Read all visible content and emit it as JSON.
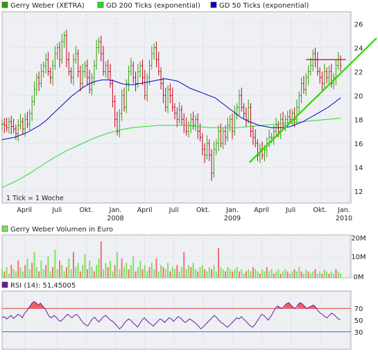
{
  "colors": {
    "panel_bg": "#eef0f4",
    "grid": "#c8ccd4",
    "up": "#2da000",
    "down": "#c8001e",
    "gd200": "#22e022",
    "gd50": "#0000c0",
    "trend": "#33dd00",
    "resistance": "#cc0000",
    "rsi_line": "#6a1a9a",
    "rsi_fill": "#f06060",
    "rsi_band_top": "#e02020",
    "rsi_band_bottom": "#4040c0",
    "vol_up": "#80e060",
    "vol_down": "#f07070"
  },
  "legend": {
    "series1": "Gerry Weber (XETRA)",
    "series2": "GD 200 Ticks (exponential)",
    "series3": "GD 50 Ticks (exponential)",
    "volume_title": "Gerry Weber Volumen in Euro",
    "rsi_title": "RSI (14): 51,45005",
    "tick_note": "1 Tick = 1 Woche"
  },
  "chart_data": [
    {
      "type": "ohlc",
      "name": "Gerry Weber (XETRA)",
      "ylim": [
        11,
        27
      ],
      "yticks": [
        12,
        14,
        16,
        18,
        20,
        22,
        24,
        26
      ],
      "x_labels": [
        {
          "label": "April",
          "pos": 0.065
        },
        {
          "label": "Juli",
          "pos": 0.16
        },
        {
          "label": "Okt.",
          "pos": 0.245
        },
        {
          "label": "Jan.",
          "pos": 0.33,
          "year": "2008"
        },
        {
          "label": "April",
          "pos": 0.415
        },
        {
          "label": "Juli",
          "pos": 0.5
        },
        {
          "label": "Okt.",
          "pos": 0.585
        },
        {
          "label": "Jan.",
          "pos": 0.67,
          "year": "2009"
        },
        {
          "label": "April",
          "pos": 0.755
        },
        {
          "label": "Juli",
          "pos": 0.84
        },
        {
          "label": "Okt.",
          "pos": 0.925
        },
        {
          "label": "Jan.",
          "pos": 1.01,
          "year": "2010"
        }
      ],
      "close_path": [
        17.6,
        17.5,
        17.3,
        17.8,
        17.4,
        17.2,
        16.8,
        17.5,
        17.8,
        17.2,
        18.0,
        17.6,
        18.5,
        19.5,
        20.5,
        21.5,
        21.0,
        22.0,
        22.5,
        23.0,
        22.0,
        21.5,
        22.5,
        23.5,
        24.0,
        23.0,
        24.5,
        25.0,
        23.0,
        22.0,
        21.5,
        23.0,
        23.5,
        22.0,
        21.0,
        22.0,
        22.5,
        21.5,
        20.5,
        21.5,
        22.5,
        24.0,
        24.5,
        23.5,
        22.0,
        22.5,
        22.0,
        21.0,
        19.5,
        18.0,
        17.0,
        18.5,
        20.0,
        19.0,
        21.0,
        22.0,
        22.5,
        21.5,
        21.0,
        22.0,
        22.5,
        21.5,
        20.0,
        21.5,
        22.5,
        23.5,
        24.0,
        23.0,
        22.0,
        21.0,
        20.0,
        19.0,
        20.5,
        20.0,
        19.0,
        18.5,
        18.0,
        18.8,
        18.0,
        17.5,
        17.0,
        17.5,
        18.0,
        17.5,
        18.0,
        17.0,
        16.5,
        15.5,
        15.0,
        16.0,
        15.0,
        13.5,
        15.5,
        16.0,
        17.0,
        16.0,
        17.0,
        16.5,
        17.5,
        18.0,
        17.0,
        18.5,
        19.0,
        20.0,
        19.0,
        18.5,
        18.0,
        19.0,
        17.0,
        16.5,
        16.0,
        15.0,
        15.5,
        15.0,
        15.5,
        16.0,
        16.5,
        16.5,
        17.0,
        17.5,
        17.0,
        18.0,
        17.5,
        18.0,
        18.2,
        18.0,
        18.5,
        18.0,
        19.0,
        20.0,
        21.0,
        20.5,
        21.5,
        22.0,
        22.5,
        23.5,
        23.0,
        22.0,
        21.5,
        21.0,
        22.0,
        21.5,
        22.0,
        21.0,
        21.5,
        22.5,
        23.0,
        22.5
      ],
      "gd50_path": [
        16.3,
        16.4,
        16.5,
        16.7,
        16.9,
        17.2,
        17.5,
        17.9,
        18.4,
        18.9,
        19.4,
        19.9,
        20.3,
        20.7,
        21.0,
        21.2,
        21.3,
        21.3,
        21.2,
        21.0,
        20.9,
        20.9,
        21.0,
        21.1,
        21.2,
        21.3,
        21.4,
        21.3,
        21.2,
        20.9,
        20.6,
        20.4,
        20.2,
        20.0,
        19.8,
        19.4,
        19.0,
        18.6,
        18.2,
        17.9,
        17.7,
        17.5,
        17.4,
        17.3,
        17.3,
        17.3,
        17.4,
        17.6,
        17.8,
        18.1,
        18.4,
        18.7,
        19.0,
        19.4,
        19.8
      ],
      "gd200_path": [
        12.3,
        12.8,
        13.4,
        14.1,
        14.8,
        15.4,
        15.9,
        16.4,
        16.8,
        17.1,
        17.3,
        17.4,
        17.5,
        17.5,
        17.5,
        17.4,
        17.3,
        17.3,
        17.3,
        17.4,
        17.5,
        17.6,
        17.7,
        17.8,
        17.9,
        18.0,
        18.1
      ],
      "trend_line": {
        "from": {
          "pos": 0.72,
          "y": 14.4
        },
        "to": {
          "pos": 1.09,
          "y": 24.8
        }
      },
      "resistance_line": {
        "from": {
          "pos": 0.885,
          "y": 23.0
        },
        "to": {
          "pos": 1.0,
          "y": 23.0
        }
      }
    },
    {
      "type": "bar",
      "name": "Gerry Weber Volumen in Euro",
      "ylim": [
        0,
        20
      ],
      "yticks": [
        {
          "v": 0,
          "label": "0M"
        },
        {
          "v": 10,
          "label": "10M"
        },
        {
          "v": 20,
          "label": "20M"
        }
      ],
      "values": [
        4,
        3,
        5,
        2,
        6,
        4,
        3,
        8,
        5,
        3,
        6,
        9,
        4,
        7,
        12,
        5,
        3,
        8,
        4,
        6,
        10,
        3,
        5,
        13,
        4,
        8,
        6,
        3,
        5,
        9,
        4,
        12,
        5,
        7,
        3,
        6,
        11,
        4,
        8,
        5,
        3,
        6,
        9,
        17,
        4,
        7,
        5,
        8,
        3,
        6,
        12,
        4,
        9,
        5,
        7,
        4,
        6,
        10,
        3,
        5,
        8,
        4,
        6,
        3,
        5,
        7,
        4,
        9,
        3,
        6,
        5,
        4,
        7,
        3,
        5,
        4,
        6,
        3,
        5,
        12,
        4,
        6,
        5,
        7,
        4,
        3,
        5,
        6,
        4,
        3,
        5,
        4,
        6,
        3,
        14,
        5,
        4,
        3,
        5,
        4,
        3,
        4,
        5,
        3,
        4,
        2,
        3,
        4,
        3,
        5,
        4,
        3,
        2,
        4,
        3,
        5,
        3,
        4,
        2,
        3,
        4,
        2,
        3,
        4,
        3,
        2,
        3,
        4,
        3,
        5,
        3,
        2,
        4,
        3,
        2,
        3,
        4,
        2,
        3,
        2,
        4,
        3,
        2,
        3,
        2,
        4,
        3,
        2
      ],
      "up_down": "alternating"
    },
    {
      "type": "line",
      "name": "RSI (14)",
      "value_label": "51,45005",
      "ylim": [
        0,
        100
      ],
      "yticks": [
        30,
        50,
        70
      ],
      "bands": [
        70,
        30
      ],
      "values": [
        54,
        56,
        52,
        55,
        58,
        53,
        56,
        60,
        58,
        54,
        62,
        66,
        72,
        78,
        82,
        80,
        76,
        79,
        74,
        70,
        62,
        56,
        54,
        58,
        55,
        50,
        48,
        52,
        56,
        60,
        57,
        54,
        58,
        60,
        56,
        50,
        45,
        42,
        40,
        46,
        52,
        55,
        50,
        47,
        52,
        56,
        58,
        54,
        50,
        48,
        44,
        40,
        35,
        38,
        44,
        48,
        52,
        50,
        45,
        42,
        38,
        44,
        50,
        54,
        50,
        46,
        43,
        40,
        44,
        48,
        52,
        50,
        46,
        50,
        54,
        52,
        48,
        52,
        56,
        54,
        50,
        46,
        48,
        52,
        50,
        47,
        44,
        40,
        35,
        38,
        42,
        46,
        50,
        54,
        58,
        55,
        50,
        46,
        44,
        40,
        38,
        42,
        46,
        50,
        54,
        52,
        56,
        52,
        48,
        44,
        40,
        38,
        42,
        48,
        54,
        60,
        58,
        54,
        50,
        56,
        62,
        70,
        74,
        72,
        70,
        74,
        78,
        80,
        76,
        72,
        70,
        76,
        80,
        78,
        74,
        70,
        72,
        74,
        76,
        72,
        66,
        62,
        60,
        56,
        54,
        58,
        62,
        60,
        56,
        52,
        51
      ]
    }
  ]
}
